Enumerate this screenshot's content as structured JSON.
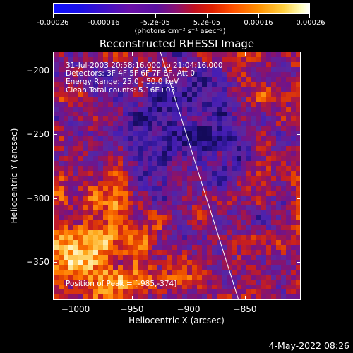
{
  "colorbar": {
    "tick_labels": [
      "-0.00026",
      "-0.00016",
      "-5.2e-05",
      "5.2e-05",
      "0.00016",
      "0.00026"
    ],
    "units_label": "(photons cm⁻² s⁻¹ asec⁻²)"
  },
  "plot": {
    "title": "Reconstructed RHESSI Image",
    "x_label": "Heliocentric X (arcsec)",
    "y_label": "Heliocentric Y (arcsec)",
    "x_ticks": [
      "−1000",
      "−950",
      "−900",
      "−850"
    ],
    "y_ticks": [
      "−200",
      "−250",
      "−300",
      "−350"
    ],
    "annotations": {
      "time_range": "31-Jul-2003 20:58:16.000 to 21:04:16.000",
      "detectors": "Detectors: 3F 4F 5F 6F 7F 8F, Att 0",
      "energy": "Energy Range: 25.0 - 50.0 keV",
      "method": "Clean     Total counts: 5.16E+03",
      "peak": "Position of Peak = [-985,-374]"
    }
  },
  "footer": {
    "timestamp": "4-May-2022 08:26"
  }
}
